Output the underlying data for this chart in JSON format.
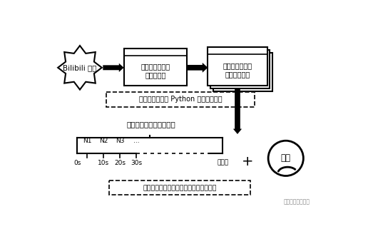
{
  "bg_color": "#ffffff",
  "bilibili_text1": "Bilibili 网站",
  "box1_line1": "关键词搜索，获",
  "box1_line2": "取视频列表",
  "box2_line1": "筛选视频列表，",
  "box2_line2": "获取弹幕数据",
  "dashed_box1_text": "数据获取（基于 Python 和爬虫技术）",
  "timeline_title": "等时间间隔弹幕数据分布",
  "n_labels": [
    "N1",
    "N2",
    "N3",
    "..."
  ],
  "time_labels": [
    "0s",
    "10s",
    "20s",
    "30s",
    "总时长"
  ],
  "video_text": "视频",
  "preprocess_text": "数据预处理（基于弹幕数据和视频时长）",
  "watermark": "南开新传量化研究",
  "plus_sign": "+"
}
